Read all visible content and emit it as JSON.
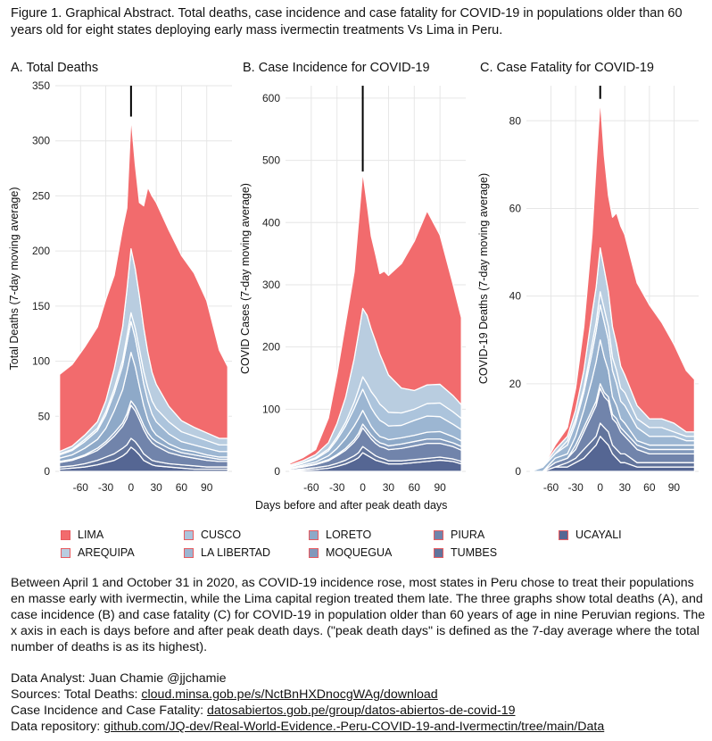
{
  "caption": "Figure 1. Graphical Abstract. Total deaths, case incidence and case fatality for COVID-19 in populations older than 60 years old for eight states deploying early mass ivermectin treatments Vs Lima in Peru.",
  "x_axis_label": "Days before and after peak death days",
  "colors": {
    "LIMA": "#f26b6d",
    "AREQUIPA": "#b9cde0",
    "CUSCO": "#acc4dc",
    "LA LIBERTAD": "#9cb6d2",
    "LORETO": "#8ea9c8",
    "MOQUEGUA": "#8198bb",
    "PIURA": "#7184ab",
    "TUMBES": "#62749c",
    "UCAYALI": "#556693"
  },
  "legend": [
    {
      "name": "LIMA"
    },
    {
      "name": "CUSCO"
    },
    {
      "name": "LORETO"
    },
    {
      "name": "PIURA"
    },
    {
      "name": "UCAYALI"
    },
    {
      "name": "AREQUIPA"
    },
    {
      "name": "LA LIBERTAD"
    },
    {
      "name": "MOQUEGUA"
    },
    {
      "name": "TUMBES"
    }
  ],
  "description": "Between April 1 and October 31 in 2020, as COVID-19 incidence rose, most states in Peru chose to treat their populations en masse early with ivermectin, while the Lima capital region treated them late. The three graphs show total deaths (A), and case incidence (B) and case fatality (C) for COVID-19 in population older than 60 years of age in nine Peruvian regions. The x axis in each is days before and after peak death days. (\"peak death days\" is defined as the 7-day average where the total number of deaths is as its highest).",
  "credits": {
    "analyst": "Data Analyst: Juan Chamie @jjchamie",
    "sources_prefix": "Sources: Total Deaths: ",
    "sources_link": "cloud.minsa.gob.pe/s/NctBnHXDnocgWAg/download",
    "cases_prefix": "Case Incidence and Case Fatality: ",
    "cases_link": "datosabiertos.gob.pe/group/datos-abiertos-de-covid-19",
    "repo_prefix": "Data repository: ",
    "repo_link": "github.com/JQ-dev/Real-World-Evidence.-Peru-COVID-19-and-Ivermectin/tree/main/Data"
  },
  "chart_data": [
    {
      "type": "area",
      "title": "A. Total Deaths",
      "ylabel": "Total Deaths (7-day moving average)",
      "xlim": [
        -90,
        120
      ],
      "ylim": [
        0,
        350
      ],
      "x_ticks": [
        -60,
        -30,
        0,
        30,
        60,
        90
      ],
      "y_ticks": [
        0,
        50,
        100,
        150,
        200,
        250,
        300,
        350
      ],
      "peak_marker_x": 0,
      "x": [
        -85,
        -70,
        -55,
        -40,
        -30,
        -20,
        -10,
        -5,
        0,
        5,
        10,
        15,
        20,
        25,
        30,
        45,
        60,
        75,
        90,
        105,
        115
      ],
      "series": [
        {
          "name": "UCAYALI",
          "values": [
            2,
            3,
            4,
            6,
            8,
            10,
            14,
            17,
            22,
            19,
            15,
            10,
            8,
            6,
            5,
            4,
            3,
            2,
            2,
            2,
            2
          ]
        },
        {
          "name": "TUMBES",
          "values": [
            2,
            2,
            3,
            4,
            5,
            6,
            7,
            7,
            8,
            8,
            7,
            6,
            5,
            4,
            4,
            3,
            3,
            3,
            2,
            2,
            2
          ]
        },
        {
          "name": "PIURA",
          "values": [
            4,
            5,
            7,
            9,
            12,
            16,
            20,
            24,
            30,
            28,
            25,
            22,
            18,
            16,
            14,
            10,
            8,
            7,
            6,
            5,
            5
          ]
        },
        {
          "name": "MOQUEGUA",
          "values": [
            1,
            1,
            1,
            2,
            2,
            3,
            3,
            4,
            4,
            4,
            4,
            4,
            4,
            4,
            4,
            4,
            3,
            3,
            3,
            2,
            2
          ]
        },
        {
          "name": "LORETO",
          "values": [
            3,
            4,
            6,
            8,
            12,
            20,
            30,
            38,
            44,
            36,
            26,
            18,
            12,
            8,
            6,
            4,
            3,
            3,
            2,
            2,
            2
          ]
        },
        {
          "name": "LA LIBERTAD",
          "values": [
            3,
            4,
            6,
            8,
            12,
            16,
            22,
            26,
            28,
            26,
            24,
            20,
            17,
            14,
            12,
            9,
            7,
            6,
            6,
            5,
            5
          ]
        },
        {
          "name": "CUSCO",
          "values": [
            1,
            1,
            2,
            2,
            3,
            4,
            5,
            6,
            8,
            9,
            10,
            11,
            12,
            12,
            12,
            11,
            9,
            8,
            7,
            6,
            6
          ]
        },
        {
          "name": "AREQUIPA",
          "values": [
            2,
            3,
            4,
            6,
            10,
            18,
            30,
            42,
            58,
            54,
            48,
            40,
            32,
            26,
            22,
            14,
            10,
            8,
            7,
            6,
            6
          ]
        },
        {
          "name": "LIMA",
          "values": [
            70,
            74,
            80,
            86,
            92,
            85,
            90,
            75,
            120,
            95,
            85,
            110,
            150,
            160,
            165,
            160,
            150,
            140,
            120,
            80,
            65
          ]
        }
      ]
    },
    {
      "type": "area",
      "title": "B. Case Incidence for COVID-19",
      "ylabel": "COVID Cases (7-day moving average)",
      "xlim": [
        -90,
        120
      ],
      "ylim": [
        0,
        620
      ],
      "x_ticks": [
        -60,
        -30,
        0,
        30,
        60,
        90
      ],
      "y_ticks": [
        0,
        100,
        200,
        300,
        400,
        500,
        600
      ],
      "peak_marker_x": 0,
      "x": [
        -85,
        -70,
        -55,
        -40,
        -30,
        -20,
        -10,
        -5,
        0,
        5,
        10,
        15,
        20,
        25,
        30,
        45,
        60,
        75,
        90,
        105,
        115
      ],
      "series": [
        {
          "name": "UCAYALI",
          "values": [
            1,
            2,
            3,
            5,
            8,
            12,
            18,
            22,
            30,
            26,
            22,
            18,
            16,
            14,
            12,
            12,
            14,
            16,
            18,
            16,
            12
          ]
        },
        {
          "name": "TUMBES",
          "values": [
            1,
            2,
            3,
            4,
            5,
            6,
            7,
            8,
            10,
            9,
            8,
            7,
            6,
            6,
            5,
            5,
            5,
            5,
            5,
            4,
            4
          ]
        },
        {
          "name": "PIURA",
          "values": [
            2,
            3,
            5,
            8,
            12,
            16,
            22,
            26,
            30,
            26,
            22,
            20,
            18,
            18,
            18,
            20,
            22,
            24,
            22,
            20,
            18
          ]
        },
        {
          "name": "MOQUEGUA",
          "values": [
            0,
            1,
            1,
            2,
            2,
            3,
            4,
            5,
            6,
            6,
            6,
            6,
            6,
            6,
            6,
            7,
            7,
            7,
            7,
            6,
            6
          ]
        },
        {
          "name": "LORETO",
          "values": [
            1,
            2,
            3,
            6,
            10,
            16,
            22,
            24,
            22,
            18,
            14,
            12,
            10,
            10,
            10,
            10,
            10,
            11,
            12,
            10,
            9
          ]
        },
        {
          "name": "LA LIBERTAD",
          "values": [
            2,
            3,
            5,
            8,
            14,
            20,
            28,
            32,
            34,
            32,
            30,
            28,
            26,
            24,
            22,
            20,
            24,
            26,
            24,
            20,
            18
          ]
        },
        {
          "name": "CUSCO",
          "values": [
            1,
            1,
            2,
            3,
            4,
            6,
            10,
            14,
            20,
            24,
            26,
            28,
            26,
            24,
            22,
            20,
            18,
            20,
            22,
            20,
            18
          ]
        },
        {
          "name": "AREQUIPA",
          "values": [
            2,
            3,
            5,
            10,
            22,
            40,
            70,
            90,
            110,
            110,
            100,
            90,
            80,
            70,
            60,
            40,
            30,
            30,
            30,
            26,
            22
          ]
        },
        {
          "name": "LIMA",
          "values": [
            3,
            5,
            8,
            40,
            80,
            120,
            140,
            180,
            220,
            180,
            150,
            140,
            130,
            150,
            160,
            200,
            240,
            280,
            240,
            180,
            140
          ]
        }
      ]
    },
    {
      "type": "area",
      "title": "C. Case Fatality for COVID-19",
      "ylabel": "COVID-19 Deaths (7-day moving average)",
      "xlim": [
        -90,
        120
      ],
      "ylim": [
        0,
        88
      ],
      "x_ticks": [
        -60,
        -30,
        0,
        30,
        60,
        90
      ],
      "y_ticks": [
        0,
        20,
        40,
        60,
        80
      ],
      "peak_marker_x": 0,
      "x": [
        -85,
        -70,
        -55,
        -40,
        -30,
        -20,
        -10,
        -5,
        0,
        5,
        10,
        15,
        20,
        25,
        30,
        45,
        60,
        75,
        90,
        105,
        115
      ],
      "series": [
        {
          "name": "UCAYALI",
          "values": [
            0,
            0,
            1,
            1,
            2,
            3,
            5,
            6,
            8,
            7,
            6,
            4,
            3,
            2,
            2,
            1,
            1,
            1,
            1,
            1,
            1
          ]
        },
        {
          "name": "TUMBES",
          "values": [
            0,
            0,
            0,
            1,
            1,
            2,
            2,
            2,
            3,
            3,
            3,
            2,
            2,
            2,
            2,
            1,
            1,
            1,
            1,
            1,
            1
          ]
        },
        {
          "name": "PIURA",
          "values": [
            0,
            0,
            1,
            1,
            2,
            4,
            6,
            7,
            8,
            7,
            7,
            6,
            6,
            5,
            4,
            3,
            2,
            2,
            2,
            2,
            2
          ]
        },
        {
          "name": "MOQUEGUA",
          "values": [
            0,
            0,
            0,
            0,
            1,
            1,
            1,
            1,
            1,
            1,
            1,
            1,
            1,
            1,
            1,
            1,
            1,
            1,
            1,
            1,
            1
          ]
        },
        {
          "name": "LORETO",
          "values": [
            0,
            0,
            1,
            1,
            2,
            4,
            7,
            9,
            10,
            8,
            6,
            4,
            3,
            2,
            2,
            1,
            1,
            1,
            1,
            1,
            1
          ]
        },
        {
          "name": "LA LIBERTAD",
          "values": [
            0,
            1,
            1,
            2,
            3,
            4,
            6,
            7,
            8,
            8,
            7,
            6,
            5,
            4,
            4,
            3,
            2,
            2,
            2,
            1,
            1
          ]
        },
        {
          "name": "CUSCO",
          "values": [
            0,
            0,
            0,
            1,
            1,
            1,
            2,
            2,
            3,
            3,
            3,
            3,
            3,
            3,
            3,
            2,
            2,
            2,
            1,
            1,
            1
          ]
        },
        {
          "name": "AREQUIPA",
          "values": [
            0,
            0,
            1,
            1,
            2,
            4,
            7,
            8,
            10,
            9,
            8,
            7,
            6,
            5,
            4,
            3,
            2,
            2,
            2,
            1,
            1
          ]
        },
        {
          "name": "LIMA",
          "values": [
            0,
            0,
            1,
            2,
            5,
            10,
            18,
            28,
            34,
            26,
            22,
            25,
            30,
            32,
            32,
            28,
            26,
            22,
            18,
            14,
            12
          ]
        }
      ]
    }
  ]
}
